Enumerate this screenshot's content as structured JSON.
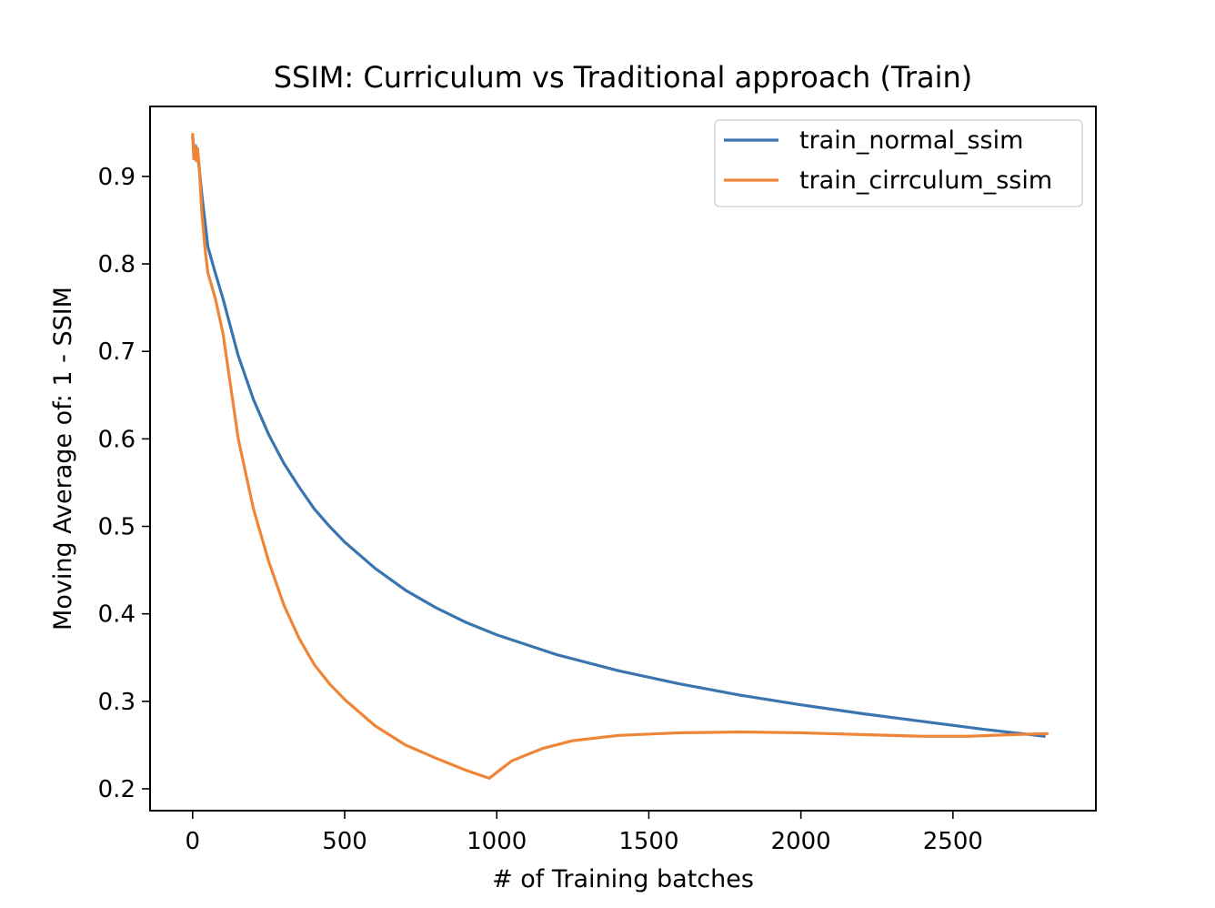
{
  "chart_data": {
    "type": "line",
    "title": "SSIM: Curriculum vs Traditional approach (Train)",
    "xlabel": "# of Training batches",
    "ylabel": "Moving Average of: 1 - SSIM",
    "xlim": [
      -140,
      2970
    ],
    "ylim": [
      0.175,
      0.98
    ],
    "xticks": [
      0,
      500,
      1000,
      1500,
      2000,
      2500
    ],
    "yticks": [
      0.2,
      0.3,
      0.4,
      0.5,
      0.6,
      0.7,
      0.8,
      0.9
    ],
    "grid": false,
    "legend_position": "top-right",
    "series": [
      {
        "name": "train_normal_ssim",
        "color": "#3b75af",
        "points": [
          [
            0,
            0.945
          ],
          [
            5,
            0.93
          ],
          [
            10,
            0.935
          ],
          [
            15,
            0.925
          ],
          [
            20,
            0.915
          ],
          [
            30,
            0.88
          ],
          [
            40,
            0.85
          ],
          [
            50,
            0.82
          ],
          [
            70,
            0.795
          ],
          [
            100,
            0.76
          ],
          [
            150,
            0.695
          ],
          [
            200,
            0.645
          ],
          [
            250,
            0.605
          ],
          [
            300,
            0.572
          ],
          [
            350,
            0.545
          ],
          [
            400,
            0.52
          ],
          [
            450,
            0.5
          ],
          [
            500,
            0.482
          ],
          [
            600,
            0.452
          ],
          [
            700,
            0.427
          ],
          [
            800,
            0.407
          ],
          [
            900,
            0.39
          ],
          [
            1000,
            0.376
          ],
          [
            1200,
            0.353
          ],
          [
            1400,
            0.335
          ],
          [
            1600,
            0.32
          ],
          [
            1800,
            0.307
          ],
          [
            2000,
            0.296
          ],
          [
            2200,
            0.286
          ],
          [
            2400,
            0.277
          ],
          [
            2600,
            0.268
          ],
          [
            2800,
            0.26
          ]
        ]
      },
      {
        "name": "train_cirrculum_ssim",
        "color": "#ef8536",
        "points": [
          [
            0,
            0.948
          ],
          [
            4,
            0.92
          ],
          [
            8,
            0.935
          ],
          [
            12,
            0.918
          ],
          [
            16,
            0.932
          ],
          [
            22,
            0.91
          ],
          [
            30,
            0.86
          ],
          [
            40,
            0.82
          ],
          [
            50,
            0.79
          ],
          [
            75,
            0.76
          ],
          [
            100,
            0.72
          ],
          [
            150,
            0.6
          ],
          [
            200,
            0.52
          ],
          [
            250,
            0.46
          ],
          [
            300,
            0.41
          ],
          [
            350,
            0.372
          ],
          [
            400,
            0.342
          ],
          [
            450,
            0.32
          ],
          [
            500,
            0.302
          ],
          [
            600,
            0.272
          ],
          [
            700,
            0.25
          ],
          [
            800,
            0.235
          ],
          [
            900,
            0.221
          ],
          [
            975,
            0.212
          ],
          [
            1050,
            0.232
          ],
          [
            1150,
            0.246
          ],
          [
            1250,
            0.255
          ],
          [
            1400,
            0.261
          ],
          [
            1600,
            0.264
          ],
          [
            1800,
            0.265
          ],
          [
            2000,
            0.264
          ],
          [
            2200,
            0.262
          ],
          [
            2400,
            0.26
          ],
          [
            2550,
            0.26
          ],
          [
            2700,
            0.262
          ],
          [
            2810,
            0.263
          ]
        ]
      }
    ]
  }
}
